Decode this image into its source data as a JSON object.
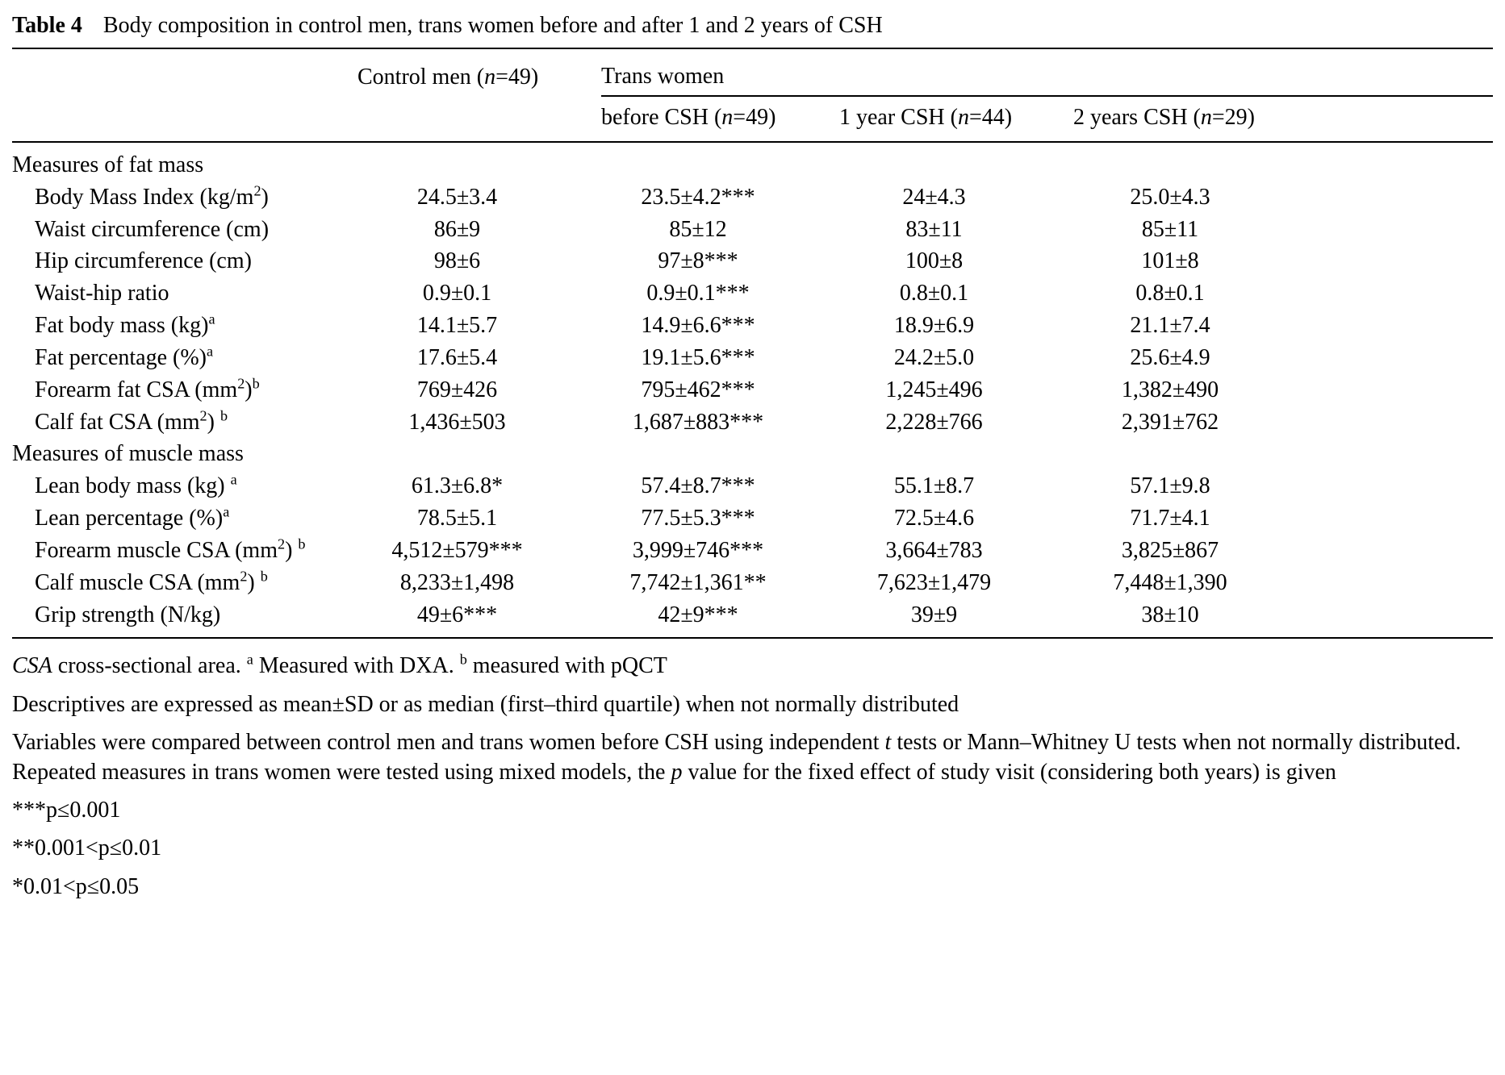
{
  "title": {
    "label": "Table 4",
    "text": "Body composition in control men, trans women before and after 1 and 2 years of CSH"
  },
  "table": {
    "group_header": "Trans women",
    "col_headers": {
      "control": "Control men (~n~=49)",
      "before": "before CSH (~n~=49)",
      "year1": "1 year CSH (~n~=44)",
      "year2": "2 years CSH (~n~=29)"
    },
    "sections": [
      {
        "label": "Measures of fat mass",
        "rows": [
          {
            "label": "Body Mass Index (kg/m^2^)",
            "values": [
              "24.5±3.4",
              "23.5±4.2***",
              "24±4.3",
              "25.0±4.3"
            ]
          },
          {
            "label": "Waist circumference (cm)",
            "values": [
              "86±9",
              "85±12",
              "83±11",
              "85±11"
            ]
          },
          {
            "label": "Hip circumference (cm)",
            "values": [
              "98±6",
              "97±8***",
              "100±8",
              "101±8"
            ]
          },
          {
            "label": "Waist-hip ratio",
            "values": [
              "0.9±0.1",
              "0.9±0.1***",
              "0.8±0.1",
              "0.8±0.1"
            ]
          },
          {
            "label": "Fat body mass (kg)^a^",
            "values": [
              "14.1±5.7",
              "14.9±6.6***",
              "18.9±6.9",
              "21.1±7.4"
            ]
          },
          {
            "label": "Fat percentage (%)^a^",
            "values": [
              "17.6±5.4",
              "19.1±5.6***",
              "24.2±5.0",
              "25.6±4.9"
            ]
          },
          {
            "label": "Forearm fat CSA (mm^2^)^b^",
            "values": [
              "769±426",
              "795±462***",
              "1,245±496",
              "1,382±490"
            ]
          },
          {
            "label": "Calf fat CSA (mm^2^) ^b^",
            "values": [
              "1,436±503",
              "1,687±883***",
              "2,228±766",
              "2,391±762"
            ]
          }
        ]
      },
      {
        "label": "Measures of muscle mass",
        "rows": [
          {
            "label": "Lean body mass (kg) ^a^",
            "values": [
              "61.3±6.8*",
              "57.4±8.7***",
              "55.1±8.7",
              "57.1±9.8"
            ]
          },
          {
            "label": "Lean percentage (%)^a^",
            "values": [
              "78.5±5.1",
              "77.5±5.3***",
              "72.5±4.6",
              "71.7±4.1"
            ]
          },
          {
            "label": "Forearm muscle CSA (mm^2^) ^b^",
            "values": [
              "4,512±579***",
              "3,999±746***",
              "3,664±783",
              "3,825±867"
            ]
          },
          {
            "label": "Calf muscle CSA (mm^2^) ^b^",
            "values": [
              "8,233±1,498",
              "7,742±1,361**",
              "7,623±1,479",
              "7,448±1,390"
            ]
          },
          {
            "label": "Grip strength (N/kg)",
            "values": [
              "49±6***",
              "42±9***",
              "39±9",
              "38±10"
            ]
          }
        ]
      }
    ]
  },
  "footnotes": [
    "~CSA~ cross-sectional area. ^a^ Measured with DXA. ^b^ measured with pQCT",
    "Descriptives are expressed as mean±SD or as median (first–third quartile) when not normally distributed",
    "Variables were compared between control men and trans women before CSH using independent ~t~ tests or Mann–Whitney U tests when not normally distributed. Repeated measures in trans women were tested using mixed models, the ~p~ value for the fixed effect of study visit (considering both years) is given",
    "***p≤0.001",
    "**0.001<p≤0.01",
    "*0.01<p≤0.05"
  ]
}
